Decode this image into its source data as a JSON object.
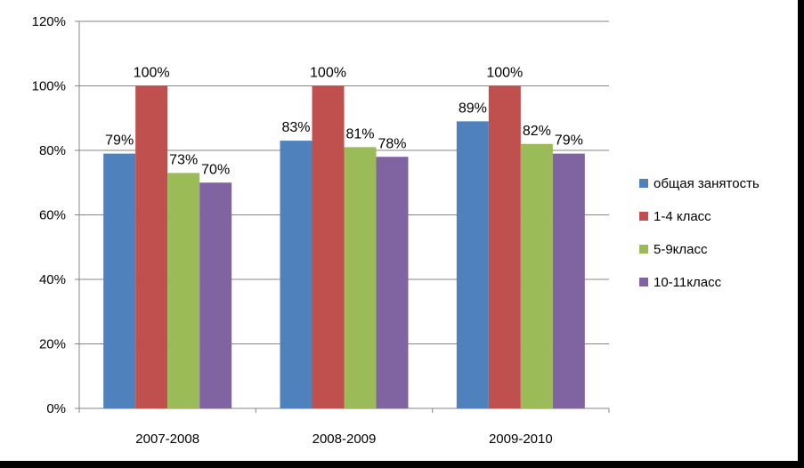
{
  "chart_data": {
    "type": "bar",
    "title": "",
    "xlabel": "",
    "ylabel": "",
    "categories": [
      "2007-2008",
      "2008-2009",
      "2009-2010"
    ],
    "ylim": [
      0,
      120
    ],
    "yticks": [
      "0%",
      "20%",
      "40%",
      "60%",
      "80%",
      "100%",
      "120%"
    ],
    "grid": true,
    "legend": "right",
    "series": [
      {
        "name": "общая занятость",
        "color": "#4F81BD",
        "values": [
          79,
          83,
          89
        ],
        "labels": [
          "79%",
          "83%",
          "89%"
        ]
      },
      {
        "name": "1-4 класс",
        "color": "#C0504D",
        "values": [
          100,
          100,
          100
        ],
        "labels": [
          "100%",
          "100%",
          "100%"
        ]
      },
      {
        "name": "5-9класс",
        "color": "#9BBB59",
        "values": [
          73,
          81,
          82
        ],
        "labels": [
          "73%",
          "81%",
          "82%"
        ]
      },
      {
        "name": "10-11класс",
        "color": "#8064A2",
        "values": [
          70,
          78,
          79
        ],
        "labels": [
          "70%",
          "78%",
          "79%"
        ]
      }
    ]
  }
}
